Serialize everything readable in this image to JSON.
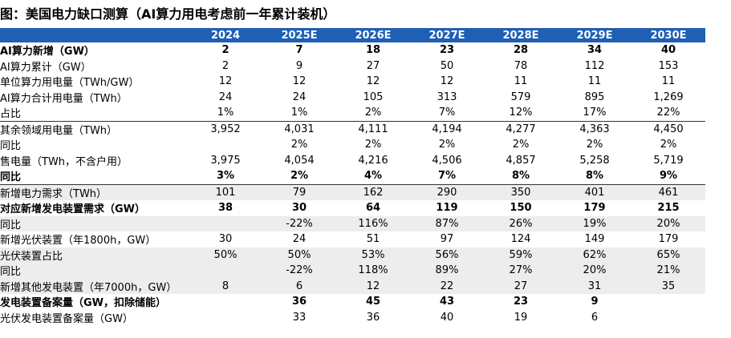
{
  "header": {
    "title": "图：美国电力缺口测算（AI算力用电考虑前一年累计装机）"
  },
  "table": {
    "columns": [
      "2024",
      "2025E",
      "2026E",
      "2027E",
      "2028E",
      "2029E",
      "2030E"
    ],
    "rows": [
      {
        "label": "AI算力新增（GW）",
        "cells": [
          "2",
          "7",
          "18",
          "23",
          "28",
          "34",
          "40"
        ],
        "bold": true
      },
      {
        "label": "AI算力累计（GW）",
        "cells": [
          "2",
          "9",
          "27",
          "50",
          "78",
          "112",
          "153"
        ]
      },
      {
        "label": "单位算力用电量（TWh/GW）",
        "cells": [
          "12",
          "12",
          "12",
          "12",
          "11",
          "11",
          "11"
        ]
      },
      {
        "label": "AI算力合计用电量（TWh）",
        "cells": [
          "24",
          "24",
          "105",
          "313",
          "579",
          "895",
          "1,269"
        ]
      },
      {
        "label": "占比",
        "cells": [
          "1%",
          "1%",
          "2%",
          "7%",
          "12%",
          "17%",
          "22%"
        ],
        "rule": true
      },
      {
        "label": "其余领域用电量（TWh）",
        "cells": [
          "3,952",
          "4,031",
          "4,111",
          "4,194",
          "4,277",
          "4,363",
          "4,450"
        ]
      },
      {
        "label": "同比",
        "cells": [
          null,
          "2%",
          "2%",
          "2%",
          "2%",
          "2%",
          "2%"
        ]
      },
      {
        "label": "售电量（TWh，不含户用）",
        "cells": [
          "3,975",
          "4,054",
          "4,216",
          "4,506",
          "4,857",
          "5,258",
          "5,719"
        ]
      },
      {
        "label": "同比",
        "cells": [
          "3%",
          "2%",
          "4%",
          "7%",
          "8%",
          "8%",
          "9%"
        ],
        "bold": true,
        "rule": true
      },
      {
        "label": "新增电力需求（TWh）",
        "cells": [
          "101",
          "79",
          "162",
          "290",
          "350",
          "401",
          "461"
        ],
        "shade": true
      },
      {
        "label": "对应新增发电装置需求（GW）",
        "cells": [
          "38",
          "30",
          "64",
          "119",
          "150",
          "179",
          "215"
        ],
        "bold": true
      },
      {
        "label": "同比",
        "cells": [
          null,
          "-22%",
          "116%",
          "87%",
          "26%",
          "19%",
          "20%"
        ],
        "shade": true
      },
      {
        "label": "新增光伏装置（年1800h，GW）",
        "cells": [
          "30",
          "24",
          "51",
          "97",
          "124",
          "149",
          "179"
        ]
      },
      {
        "label": "光伏装置占比",
        "cells": [
          "50%",
          "50%",
          "53%",
          "56%",
          "59%",
          "62%",
          "65%"
        ],
        "shade": true
      },
      {
        "label": "同比",
        "cells": [
          null,
          "-22%",
          "118%",
          "89%",
          "27%",
          "20%",
          "21%"
        ],
        "shade": true
      },
      {
        "label": "新增其他发电装置（年7000h，GW）",
        "cells": [
          "8",
          "6",
          "12",
          "22",
          "27",
          "31",
          "35"
        ],
        "shade": true
      },
      {
        "label": "发电装置备案量（GW，扣除储能）",
        "cells": [
          null,
          "36",
          "45",
          "43",
          "23",
          "9",
          null
        ],
        "bold": true
      },
      {
        "label": "光伏发电装置备案量（GW）",
        "cells": [
          null,
          "33",
          "36",
          "40",
          "19",
          "6",
          null
        ]
      }
    ]
  }
}
